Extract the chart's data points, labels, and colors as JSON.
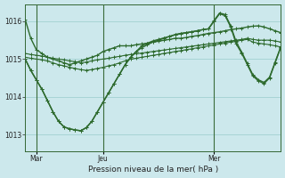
{
  "title": "Pression niveau de la mer( hPa )",
  "bg_color": "#cce8ec",
  "grid_color": "#99cccc",
  "line_color": "#2d6a2d",
  "ylim": [
    1012.55,
    1016.45
  ],
  "yticks": [
    1013,
    1014,
    1015,
    1016
  ],
  "xtick_labels": [
    "Mar",
    "Jeu",
    "Mer"
  ],
  "xtick_positions": [
    2,
    14,
    34
  ],
  "vline_positions": [
    2,
    14,
    34
  ],
  "series": [
    [
      1016.05,
      1015.55,
      1015.25,
      1015.15,
      1015.05,
      1015.0,
      1014.95,
      1014.9,
      1014.85,
      1014.9,
      1014.95,
      1015.0,
      1015.05,
      1015.1,
      1015.2,
      1015.25,
      1015.3,
      1015.35,
      1015.35,
      1015.35,
      1015.38,
      1015.4,
      1015.42,
      1015.45,
      1015.47,
      1015.5,
      1015.52,
      1015.55,
      1015.55,
      1015.57,
      1015.6,
      1015.62,
      1015.65,
      1015.68,
      1015.7,
      1015.72,
      1015.75,
      1015.78,
      1015.8,
      1015.82,
      1015.85,
      1015.87,
      1015.88,
      1015.85,
      1015.8,
      1015.75,
      1015.7
    ],
    [
      1015.15,
      1015.12,
      1015.1,
      1015.08,
      1015.05,
      1015.02,
      1015.0,
      1014.98,
      1014.95,
      1014.93,
      1014.9,
      1014.92,
      1014.95,
      1014.98,
      1015.0,
      1015.02,
      1015.05,
      1015.07,
      1015.1,
      1015.12,
      1015.14,
      1015.16,
      1015.18,
      1015.2,
      1015.22,
      1015.24,
      1015.26,
      1015.28,
      1015.3,
      1015.32,
      1015.34,
      1015.36,
      1015.38,
      1015.4,
      1015.42,
      1015.44,
      1015.46,
      1015.48,
      1015.5,
      1015.52,
      1015.55,
      1015.52,
      1015.5,
      1015.5,
      1015.5,
      1015.48,
      1015.45
    ],
    [
      1015.05,
      1015.02,
      1015.0,
      1014.98,
      1014.95,
      1014.9,
      1014.85,
      1014.82,
      1014.78,
      1014.75,
      1014.72,
      1014.7,
      1014.72,
      1014.75,
      1014.78,
      1014.82,
      1014.85,
      1014.9,
      1014.95,
      1015.0,
      1015.02,
      1015.05,
      1015.07,
      1015.1,
      1015.12,
      1015.15,
      1015.17,
      1015.2,
      1015.22,
      1015.25,
      1015.27,
      1015.3,
      1015.32,
      1015.35,
      1015.37,
      1015.4,
      1015.42,
      1015.45,
      1015.47,
      1015.5,
      1015.52,
      1015.45,
      1015.42,
      1015.4,
      1015.38,
      1015.35,
      1015.32
    ],
    [
      1015.0,
      1014.7,
      1014.45,
      1014.2,
      1013.9,
      1013.6,
      1013.35,
      1013.2,
      1013.15,
      1013.12,
      1013.1,
      1013.18,
      1013.35,
      1013.6,
      1013.85,
      1014.1,
      1014.35,
      1014.6,
      1014.85,
      1015.05,
      1015.2,
      1015.3,
      1015.38,
      1015.45,
      1015.5,
      1015.55,
      1015.6,
      1015.65,
      1015.68,
      1015.7,
      1015.72,
      1015.75,
      1015.78,
      1015.8,
      1016.0,
      1016.2,
      1016.15,
      1015.85,
      1015.4,
      1015.15,
      1014.85,
      1014.55,
      1014.42,
      1014.35,
      1014.5,
      1014.9,
      1015.3
    ],
    [
      1015.0,
      1014.7,
      1014.45,
      1014.2,
      1013.9,
      1013.6,
      1013.35,
      1013.2,
      1013.15,
      1013.12,
      1013.1,
      1013.18,
      1013.35,
      1013.6,
      1013.85,
      1014.1,
      1014.35,
      1014.6,
      1014.85,
      1015.05,
      1015.2,
      1015.35,
      1015.42,
      1015.48,
      1015.52,
      1015.56,
      1015.6,
      1015.64,
      1015.67,
      1015.7,
      1015.72,
      1015.75,
      1015.78,
      1015.8,
      1016.02,
      1016.22,
      1016.18,
      1015.88,
      1015.45,
      1015.18,
      1014.88,
      1014.58,
      1014.45,
      1014.38,
      1014.52,
      1014.92,
      1015.32
    ]
  ]
}
